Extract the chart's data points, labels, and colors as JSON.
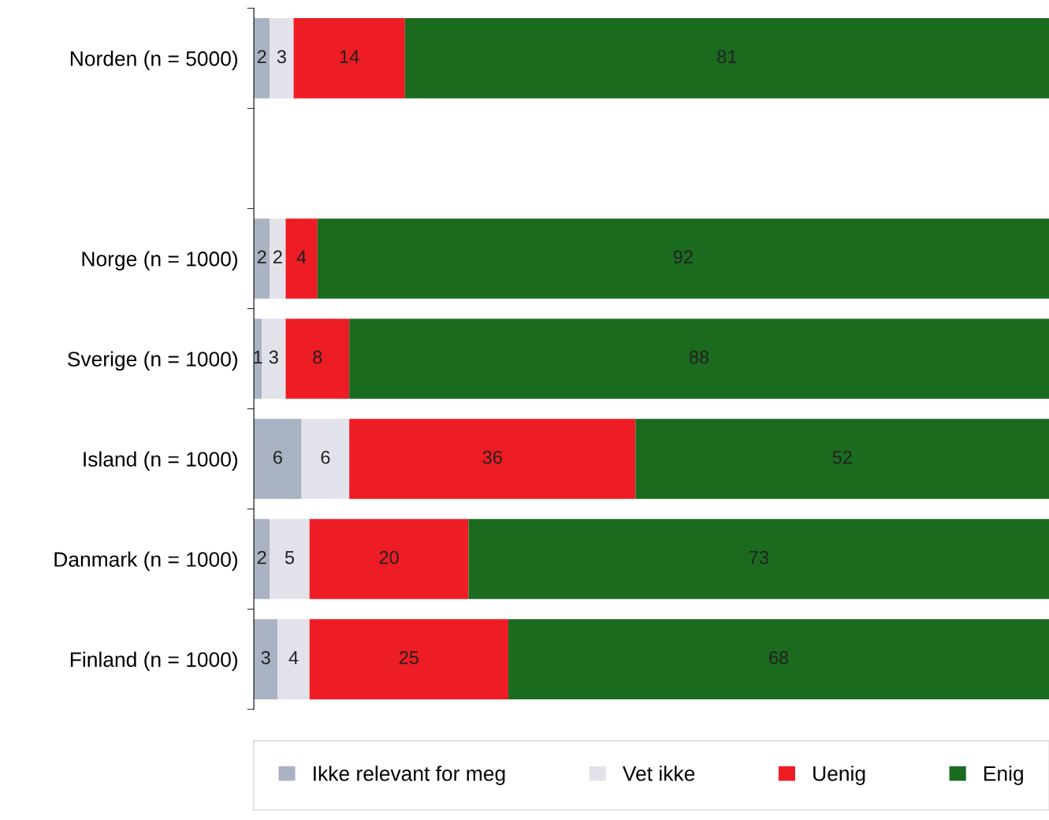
{
  "chart_data": {
    "type": "bar",
    "orientation": "horizontal",
    "stacked": true,
    "data_labels": true,
    "tick_labels": "y",
    "grid": false,
    "legend": "bottom",
    "xlim": [
      0,
      100
    ],
    "categories": [
      "Norden (n = 5000)",
      null,
      "Norge (n = 1000)",
      "Sverige (n = 1000)",
      "Island (n = 1000)",
      "Danmark (n = 1000)",
      "Finland (n = 1000)"
    ],
    "series": [
      {
        "name": "Ikke relevant for meg",
        "color": "#a9b3c3",
        "values": [
          2,
          null,
          2,
          1,
          6,
          2,
          3
        ]
      },
      {
        "name": "Vet ikke",
        "color": "#e2e2ea",
        "values": [
          3,
          null,
          2,
          3,
          6,
          5,
          4
        ]
      },
      {
        "name": "Uenig",
        "color": "#ee1c24",
        "values": [
          14,
          null,
          4,
          8,
          36,
          20,
          25
        ]
      },
      {
        "name": "Enig",
        "color": "#1b6b1f",
        "values": [
          81,
          null,
          92,
          88,
          52,
          73,
          68
        ]
      }
    ]
  }
}
